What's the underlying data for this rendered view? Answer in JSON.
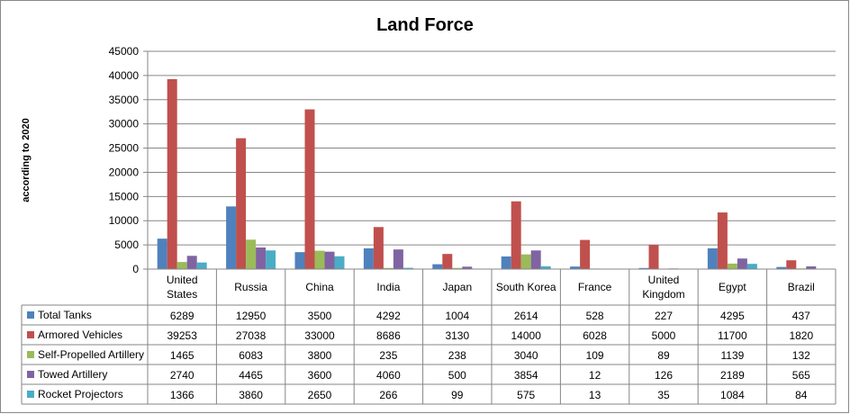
{
  "chart_data": {
    "type": "bar",
    "title": "Land Force",
    "ylabel": "according to 2020",
    "xlabel": "",
    "ylim": [
      0,
      45000
    ],
    "yticks": [
      0,
      5000,
      10000,
      15000,
      20000,
      25000,
      30000,
      35000,
      40000,
      45000
    ],
    "grid": true,
    "legend": "data-table-left",
    "categories": [
      [
        "United",
        "States"
      ],
      [
        "Russia"
      ],
      [
        "China"
      ],
      [
        "India"
      ],
      [
        "Japan"
      ],
      [
        "South Korea"
      ],
      [
        "France"
      ],
      [
        "United",
        "Kingdom"
      ],
      [
        "Egypt"
      ],
      [
        "Brazil"
      ]
    ],
    "series": [
      {
        "name": "Total Tanks",
        "color": "#4F81BD",
        "values": [
          6289,
          12950,
          3500,
          4292,
          1004,
          2614,
          528,
          227,
          4295,
          437
        ]
      },
      {
        "name": "Armored Vehicles",
        "color": "#C0504D",
        "values": [
          39253,
          27038,
          33000,
          8686,
          3130,
          14000,
          6028,
          5000,
          11700,
          1820
        ]
      },
      {
        "name": "Self-Propelled Artillery",
        "color": "#9BBB59",
        "values": [
          1465,
          6083,
          3800,
          235,
          238,
          3040,
          109,
          89,
          1139,
          132
        ]
      },
      {
        "name": "Towed Artillery",
        "color": "#8064A2",
        "values": [
          2740,
          4465,
          3600,
          4060,
          500,
          3854,
          12,
          126,
          2189,
          565
        ]
      },
      {
        "name": "Rocket Projectors",
        "color": "#4BACC6",
        "values": [
          1366,
          3860,
          2650,
          266,
          99,
          575,
          13,
          35,
          1084,
          84
        ]
      }
    ]
  }
}
